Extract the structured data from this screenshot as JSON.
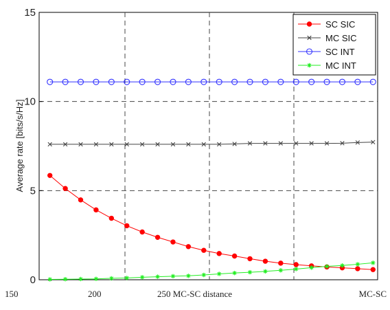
{
  "chart_data": {
    "type": "line",
    "title": "",
    "ylabel": "Average rate [bits/s/Hz]",
    "ylim": [
      0,
      15
    ],
    "yticks": [
      0,
      5,
      10,
      15
    ],
    "xtick_labels": [
      "150",
      "200",
      "250 MC-SC distance",
      "MC-SC"
    ],
    "x": [
      1,
      2,
      3,
      4,
      5,
      6,
      7,
      8,
      9,
      10,
      11,
      12,
      13,
      14,
      15,
      16,
      17,
      18,
      19,
      20,
      21,
      22
    ],
    "grid": true,
    "legend_position": "top-right",
    "series": [
      {
        "name": "SC SIC",
        "color": "#ff0000",
        "marker": "filled-circle",
        "values": [
          5.85,
          5.12,
          4.48,
          3.92,
          3.45,
          3.03,
          2.68,
          2.38,
          2.12,
          1.86,
          1.65,
          1.47,
          1.33,
          1.18,
          1.04,
          0.93,
          0.85,
          0.78,
          0.72,
          0.67,
          0.62,
          0.57
        ]
      },
      {
        "name": "MC SIC",
        "color": "#444444",
        "marker": "x",
        "values": [
          7.6,
          7.6,
          7.6,
          7.6,
          7.6,
          7.6,
          7.6,
          7.6,
          7.6,
          7.6,
          7.6,
          7.6,
          7.62,
          7.65,
          7.65,
          7.65,
          7.65,
          7.65,
          7.65,
          7.66,
          7.7,
          7.72
        ]
      },
      {
        "name": "SC INT",
        "color": "#3333ff",
        "marker": "open-circle",
        "values": [
          11.1,
          11.1,
          11.1,
          11.1,
          11.1,
          11.1,
          11.1,
          11.1,
          11.1,
          11.1,
          11.1,
          11.1,
          11.1,
          11.1,
          11.1,
          11.1,
          11.1,
          11.1,
          11.1,
          11.1,
          11.1,
          11.1
        ]
      },
      {
        "name": "MC INT",
        "color": "#22ee22",
        "marker": "star",
        "values": [
          0.02,
          0.03,
          0.04,
          0.05,
          0.08,
          0.1,
          0.14,
          0.17,
          0.2,
          0.22,
          0.27,
          0.33,
          0.38,
          0.42,
          0.47,
          0.53,
          0.6,
          0.68,
          0.75,
          0.8,
          0.87,
          0.95
        ]
      }
    ]
  }
}
